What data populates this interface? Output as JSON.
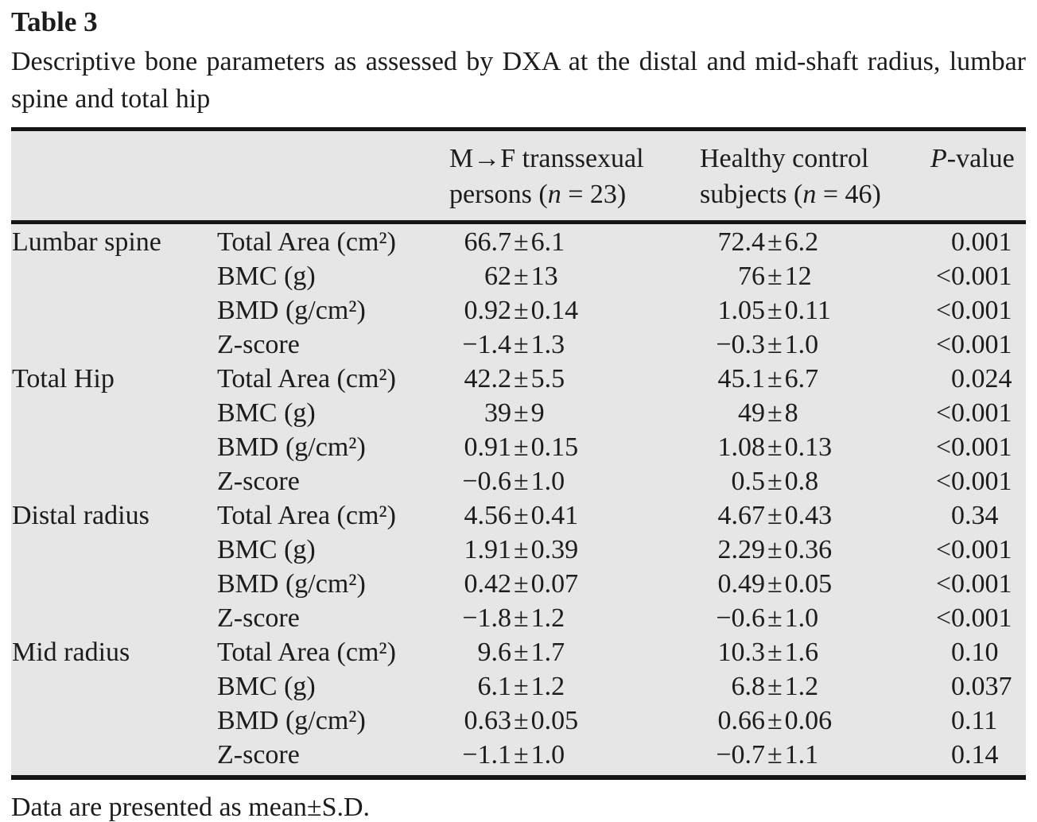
{
  "title": "Table 3",
  "caption": "Descriptive bone parameters as assessed by DXA at the distal and mid-shaft radius, lumbar spine and total hip",
  "footnote": "Data are presented as mean±S.D.",
  "colors": {
    "table_bg": "#e6e6e6",
    "rule": "#141414",
    "text": "#1c1c1c"
  },
  "table": {
    "pm": "±",
    "header": {
      "col3_line1": "M→F transsexual",
      "col3_line2_pre": "persons (",
      "col3_line2_post": " = 23)",
      "col4_line1": "Healthy control",
      "col4_line2_pre": "subjects (",
      "col4_line2_post": " = 46)",
      "n": "n",
      "p_italic": "P",
      "p_suffix": "-value"
    },
    "rows": [
      {
        "group": "Lumbar spine",
        "param": "Total Area (cm²)",
        "v1m": "66.7",
        "v1s": "6.1",
        "v2m": "72.4",
        "v2s": "6.2",
        "plt": "",
        "p": "0.001"
      },
      {
        "group": "",
        "param": "BMC (g)",
        "v1m": "62",
        "v1s": "13",
        "v2m": "76",
        "v2s": "12",
        "plt": "<",
        "p": "0.001"
      },
      {
        "group": "",
        "param": "BMD (g/cm²)",
        "v1m": "0.92",
        "v1s": "0.14",
        "v2m": "1.05",
        "v2s": "0.11",
        "plt": "<",
        "p": "0.001"
      },
      {
        "group": "",
        "param": "Z-score",
        "v1m": "−1.4",
        "v1s": "1.3",
        "v2m": "−0.3",
        "v2s": "1.0",
        "plt": "<",
        "p": "0.001"
      },
      {
        "group": "Total Hip",
        "param": "Total Area (cm²)",
        "v1m": "42.2",
        "v1s": "5.5",
        "v2m": "45.1",
        "v2s": "6.7",
        "plt": "",
        "p": "0.024"
      },
      {
        "group": "",
        "param": "BMC (g)",
        "v1m": "39",
        "v1s": "9",
        "v2m": "49",
        "v2s": "8",
        "plt": "<",
        "p": "0.001"
      },
      {
        "group": "",
        "param": "BMD (g/cm²)",
        "v1m": "0.91",
        "v1s": "0.15",
        "v2m": "1.08",
        "v2s": "0.13",
        "plt": "<",
        "p": "0.001"
      },
      {
        "group": "",
        "param": "Z-score",
        "v1m": "−0.6",
        "v1s": "1.0",
        "v2m": "0.5",
        "v2s": "0.8",
        "plt": "<",
        "p": "0.001"
      },
      {
        "group": "Distal radius",
        "param": "Total Area (cm²)",
        "v1m": "4.56",
        "v1s": "0.41",
        "v2m": "4.67",
        "v2s": "0.43",
        "plt": "",
        "p": "0.34"
      },
      {
        "group": "",
        "param": "BMC (g)",
        "v1m": "1.91",
        "v1s": "0.39",
        "v2m": "2.29",
        "v2s": "0.36",
        "plt": "<",
        "p": "0.001"
      },
      {
        "group": "",
        "param": "BMD (g/cm²)",
        "v1m": "0.42",
        "v1s": "0.07",
        "v2m": "0.49",
        "v2s": "0.05",
        "plt": "<",
        "p": "0.001"
      },
      {
        "group": "",
        "param": "Z-score",
        "v1m": "−1.8",
        "v1s": "1.2",
        "v2m": "−0.6",
        "v2s": "1.0",
        "plt": "<",
        "p": "0.001"
      },
      {
        "group": "Mid radius",
        "param": "Total Area (cm²)",
        "v1m": "9.6",
        "v1s": "1.7",
        "v2m": "10.3",
        "v2s": "1.6",
        "plt": "",
        "p": "0.10"
      },
      {
        "group": "",
        "param": "BMC (g)",
        "v1m": "6.1",
        "v1s": "1.2",
        "v2m": "6.8",
        "v2s": "1.2",
        "plt": "",
        "p": "0.037"
      },
      {
        "group": "",
        "param": "BMD (g/cm²)",
        "v1m": "0.63",
        "v1s": "0.05",
        "v2m": "0.66",
        "v2s": "0.06",
        "plt": "",
        "p": "0.11"
      },
      {
        "group": "",
        "param": "Z-score",
        "v1m": "−1.1",
        "v1s": "1.0",
        "v2m": "−0.7",
        "v2s": "1.1",
        "plt": "",
        "p": "0.14"
      }
    ]
  }
}
